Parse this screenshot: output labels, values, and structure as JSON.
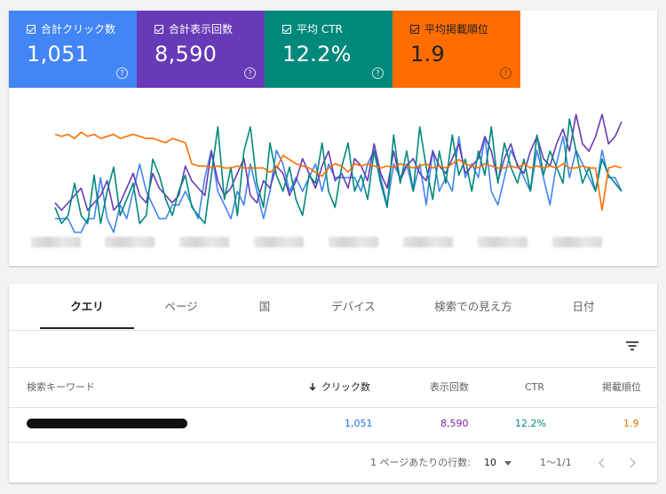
{
  "metrics": [
    {
      "label": "合計クリック数",
      "value": "1,051",
      "color": "#4285f4"
    },
    {
      "label": "合計表示回数",
      "value": "8,590",
      "color": "#673ab7"
    },
    {
      "label": "平均 CTR",
      "value": "12.2%",
      "color": "#00897b"
    },
    {
      "label": "平均掲載順位",
      "value": "1.9",
      "color": "#ff6d00"
    }
  ],
  "metric_help_icon": "help-circle-icon",
  "chart_data": {
    "type": "line",
    "title": "",
    "xlabel": "",
    "ylabel": "",
    "grid": false,
    "x_tick_labels_redacted": true,
    "series": [
      {
        "name": "合計クリック数",
        "color": "#4285f4",
        "values": [
          3,
          3,
          3,
          2,
          2,
          3,
          3,
          6,
          3,
          2,
          4,
          3,
          5,
          7,
          5,
          4,
          3,
          3,
          4,
          4,
          5,
          4,
          3,
          6,
          8,
          5,
          4,
          3,
          5,
          4,
          7,
          5,
          3,
          5,
          8,
          7,
          5,
          6,
          5,
          6,
          7,
          5,
          7,
          6,
          6,
          6,
          6,
          5,
          7,
          8,
          6,
          4,
          7,
          6,
          7,
          5,
          7,
          4,
          8,
          5,
          6,
          5,
          9,
          6,
          7,
          6,
          9,
          5,
          4,
          6,
          8,
          7,
          6,
          5,
          8,
          6,
          4,
          7,
          9,
          6,
          8,
          7,
          6,
          5,
          8,
          6,
          6,
          5
        ]
      },
      {
        "name": "合計表示回数",
        "color": "#673ab7",
        "values": [
          5,
          4,
          5,
          6,
          7,
          4,
          5,
          6,
          8,
          4,
          5,
          7,
          9,
          6,
          5,
          9,
          7,
          6,
          5,
          6,
          10,
          8,
          7,
          6,
          12,
          8,
          6,
          7,
          9,
          11,
          6,
          5,
          8,
          7,
          10,
          9,
          6,
          8,
          11,
          9,
          7,
          10,
          12,
          8,
          9,
          7,
          11,
          10,
          8,
          13,
          9,
          7,
          12,
          8,
          10,
          11,
          9,
          8,
          12,
          10,
          9,
          11,
          13,
          9,
          10,
          11,
          14,
          12,
          8,
          11,
          13,
          10,
          9,
          12,
          14,
          11,
          10,
          13,
          15,
          12,
          17,
          13,
          12,
          14,
          17,
          13,
          14,
          16
        ]
      },
      {
        "name": "平均 CTR",
        "color": "#00897b",
        "values": [
          5,
          3,
          4,
          8,
          4,
          3,
          9,
          3,
          7,
          10,
          4,
          6,
          8,
          3,
          4,
          11,
          9,
          6,
          4,
          7,
          9,
          5,
          4,
          3,
          9,
          15,
          6,
          10,
          4,
          12,
          15,
          8,
          5,
          13,
          9,
          7,
          10,
          6,
          4,
          9,
          8,
          13,
          7,
          5,
          10,
          13,
          7,
          9,
          6,
          12,
          8,
          5,
          14,
          8,
          12,
          7,
          15,
          10,
          6,
          12,
          8,
          14,
          9,
          11,
          7,
          12,
          9,
          15,
          8,
          13,
          10,
          8,
          11,
          7,
          14,
          9,
          12,
          10,
          8,
          16,
          12,
          8,
          10,
          7,
          11,
          9,
          8,
          7
        ]
      },
      {
        "name": "平均掲載順位",
        "color": "#ff6d00",
        "values": [
          2.0,
          2.05,
          2.0,
          2.1,
          1.95,
          2.05,
          2.0,
          2.1,
          2.05,
          2.0,
          2.1,
          2.05,
          2.0,
          2.05,
          2.1,
          2.1,
          2.15,
          2.2,
          2.1,
          2.15,
          2.2,
          2.7,
          2.75,
          2.75,
          2.8,
          2.75,
          2.8,
          2.8,
          2.75,
          2.8,
          2.8,
          2.8,
          2.8,
          2.9,
          2.8,
          2.5,
          2.6,
          2.7,
          2.75,
          2.8,
          2.9,
          3.0,
          2.8,
          2.7,
          2.75,
          2.9,
          2.7,
          2.75,
          2.7,
          2.75,
          2.8,
          2.75,
          2.8,
          2.7,
          2.75,
          2.8,
          2.75,
          2.7,
          2.8,
          2.75,
          2.8,
          2.7,
          2.6,
          2.7,
          2.75,
          2.8,
          2.7,
          2.75,
          2.8,
          2.8,
          2.75,
          2.8,
          2.7,
          2.8,
          2.75,
          2.8,
          2.75,
          2.8,
          2.7,
          2.8,
          2.8,
          2.75,
          2.8,
          2.8,
          3.8,
          2.8,
          2.75,
          2.8
        ]
      }
    ]
  },
  "tabs": [
    "クエリ",
    "ページ",
    "国",
    "デバイス",
    "検索での見え方",
    "日付"
  ],
  "active_tab": "クエリ",
  "filter_icon": "filter-icon",
  "table": {
    "headers": {
      "keyword": "検索キーワード",
      "clicks": "クリック数",
      "impressions": "表示回数",
      "ctr": "CTR",
      "position": "掲載順位"
    },
    "sort_icon": "arrow-down-icon",
    "rows": [
      {
        "keyword_redacted": true,
        "clicks": "1,051",
        "impressions": "8,590",
        "ctr": "12.2%",
        "position": "1.9"
      }
    ]
  },
  "pagination": {
    "rows_per_page_label": "1 ページあたりの行数:",
    "rows_per_page": "10",
    "range": "1〜1/1",
    "prev_icon": "chevron-left-icon",
    "next_icon": "chevron-right-icon"
  }
}
